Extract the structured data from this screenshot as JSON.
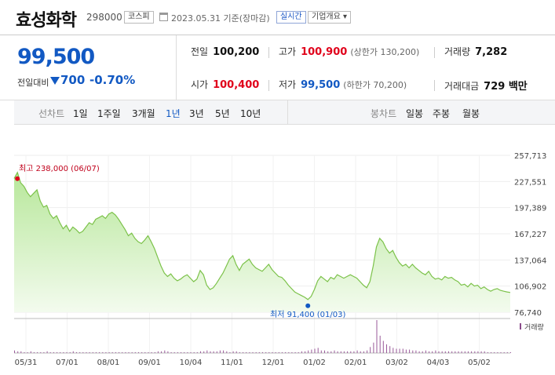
{
  "header": {
    "name": "효성화학",
    "code": "298000",
    "market": "코스피",
    "date_text": "2023.05.31 기준(장마감)",
    "realtime": "실시간",
    "company_info": "기업개요 ▾"
  },
  "price": {
    "current": "99,500",
    "diff_label": "전일대비",
    "diff": "700",
    "rate": "-0.70%"
  },
  "stats": {
    "prev_label": "전일",
    "prev": "100,200",
    "high_label": "고가",
    "high": "100,900",
    "upper_limit": "(상한가 130,200)",
    "volume_label": "거래량",
    "volume": "7,282",
    "open_label": "시가",
    "open": "100,400",
    "low_label": "저가",
    "low": "99,500",
    "lower_limit": "(하한가 70,200)",
    "amount_label": "거래대금",
    "amount": "729 백만"
  },
  "tabs": {
    "line_label": "선차트",
    "line": [
      "1일",
      "1주일",
      "3개월",
      "1년",
      "3년",
      "5년",
      "10년"
    ],
    "active": "1년",
    "candle_label": "봉차트",
    "candle": [
      "일봉",
      "주봉",
      "월봉"
    ]
  },
  "chart_data": {
    "type": "area",
    "title": "",
    "y_ticks": [
      "257,713",
      "227,551",
      "197,389",
      "167,227",
      "137,064",
      "106,902",
      "76,740"
    ],
    "ylim": [
      76740,
      257713
    ],
    "x_ticks": [
      "05/31",
      "07/01",
      "08/01",
      "09/01",
      "10/04",
      "11/01",
      "12/01",
      "01/02",
      "02/01",
      "03/02",
      "04/03",
      "05/02"
    ],
    "high_annotation": "최고 238,000 (06/07)",
    "low_annotation": "최저 91,400 (01/03)",
    "high_value": 238000,
    "low_value": 91400,
    "volume_label": "거래량",
    "price_series": [
      231000,
      238000,
      226000,
      222000,
      215000,
      210000,
      214000,
      218000,
      205000,
      198000,
      200000,
      190000,
      185000,
      188000,
      180000,
      173000,
      177000,
      170000,
      175000,
      172000,
      168000,
      170000,
      175000,
      180000,
      178000,
      184000,
      186000,
      188000,
      185000,
      190000,
      192000,
      189000,
      184000,
      178000,
      172000,
      165000,
      168000,
      162000,
      158000,
      156000,
      160000,
      165000,
      158000,
      150000,
      140000,
      130000,
      122000,
      118000,
      121000,
      116000,
      113000,
      115000,
      118000,
      120000,
      116000,
      112000,
      115000,
      125000,
      120000,
      108000,
      103000,
      105000,
      110000,
      116000,
      122000,
      130000,
      138000,
      142000,
      132000,
      125000,
      132000,
      135000,
      138000,
      132000,
      128000,
      126000,
      124000,
      128000,
      132000,
      126000,
      122000,
      118000,
      117000,
      113000,
      108000,
      104000,
      100000,
      98000,
      96000,
      94000,
      91400,
      95000,
      103000,
      113000,
      118000,
      115000,
      112000,
      117000,
      115000,
      120000,
      118000,
      116000,
      118000,
      120000,
      118000,
      116000,
      112000,
      108000,
      105000,
      112000,
      130000,
      152000,
      162000,
      158000,
      150000,
      145000,
      148000,
      140000,
      134000,
      130000,
      132000,
      128000,
      132000,
      128000,
      125000,
      122000,
      120000,
      124000,
      118000,
      115000,
      116000,
      114000,
      118000,
      116000,
      117000,
      114000,
      112000,
      108000,
      109000,
      106000,
      110000,
      107000,
      108000,
      104000,
      106000,
      103000,
      101000,
      103000,
      104000,
      102000,
      101000,
      100200,
      99500
    ],
    "volume_series": [
      3,
      2,
      2,
      1,
      1,
      2,
      1,
      1,
      1,
      1,
      2,
      1,
      1,
      1,
      1,
      1,
      1,
      1,
      2,
      1,
      1,
      1,
      1,
      1,
      1,
      1,
      1,
      1,
      1,
      1,
      1,
      1,
      1,
      1,
      1,
      1,
      1,
      1,
      1,
      1,
      1,
      1,
      1,
      1,
      2,
      2,
      3,
      2,
      1,
      1,
      1,
      1,
      1,
      1,
      1,
      1,
      1,
      2,
      2,
      3,
      2,
      2,
      2,
      3,
      3,
      2,
      1,
      2,
      2,
      1,
      1,
      1,
      1,
      1,
      1,
      1,
      1,
      1,
      1,
      1,
      1,
      1,
      1,
      1,
      1,
      1,
      1,
      1,
      2,
      2,
      3,
      4,
      5,
      6,
      3,
      3,
      2,
      2,
      3,
      2,
      2,
      2,
      2,
      2,
      2,
      3,
      2,
      2,
      3,
      7,
      12,
      38,
      20,
      14,
      10,
      8,
      6,
      5,
      5,
      5,
      4,
      4,
      3,
      3,
      2,
      2,
      3,
      2,
      2,
      3,
      2,
      2,
      2,
      2,
      2,
      2,
      2,
      2,
      2,
      2,
      2,
      2,
      2,
      2,
      2,
      1,
      1,
      1,
      1,
      1,
      1,
      1,
      1
    ]
  }
}
